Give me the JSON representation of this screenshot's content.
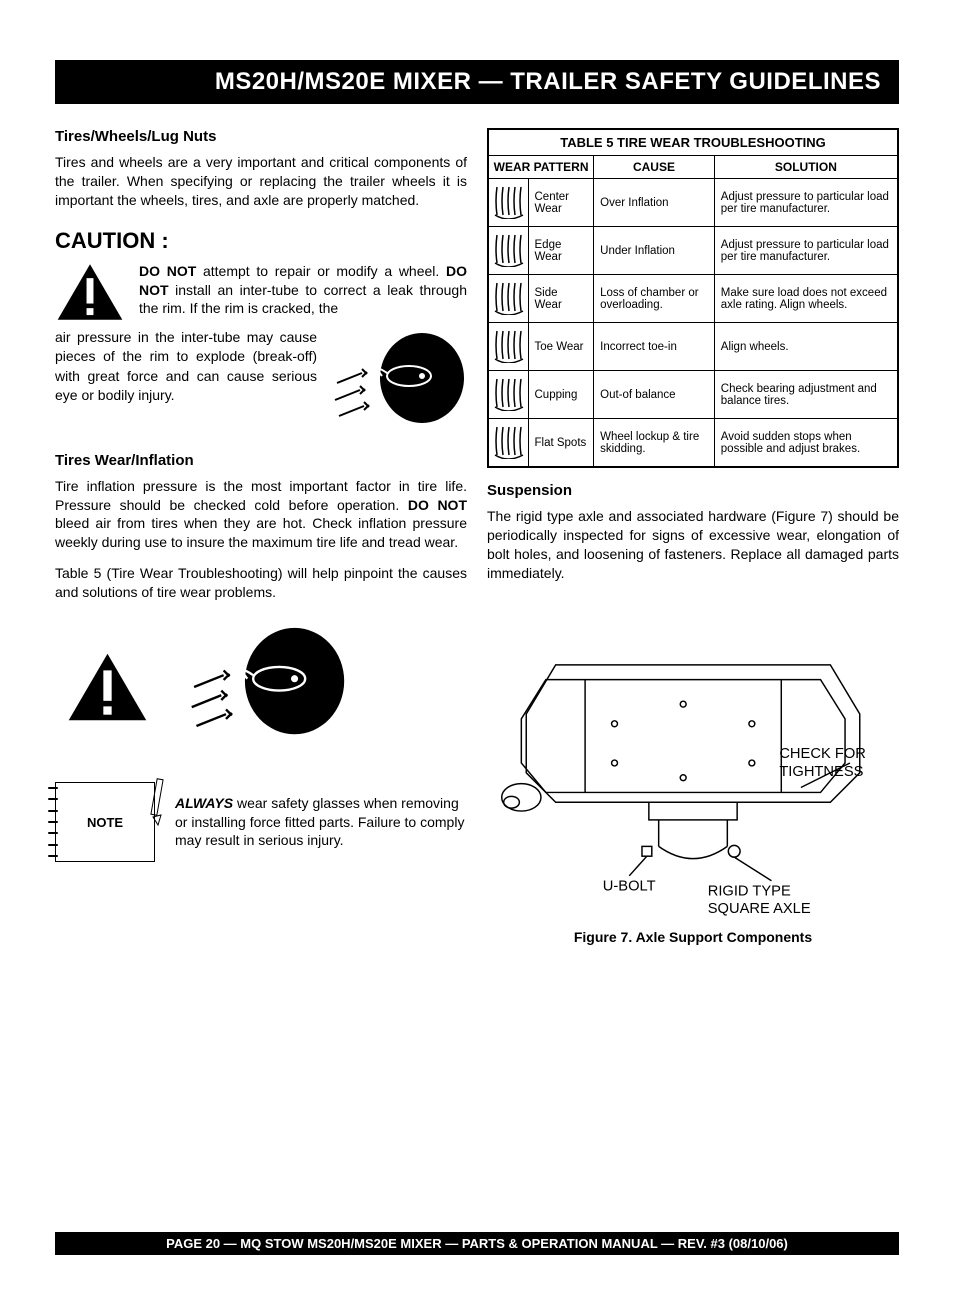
{
  "header": "MS20H/MS20E MIXER — TRAILER SAFETY GUIDELINES",
  "left": {
    "h1": "Tires/Wheels/Lug Nuts",
    "p1": "Tires and wheels are a very important and critical components of the trailer.  When specifying or replacing the trailer wheels it is important the wheels, tires, and axle are properly matched.",
    "caution": "CAUTION :",
    "donot1": "DO NOT",
    "c_p1a": " attempt to repair or modify a wheel. ",
    "donot2": "DO NOT",
    "c_p1b": " install an inter-tube to correct a leak through the rim. If the rim is cracked, the",
    "c_p2": "air pressure in the inter-tube may cause pieces of the rim to explode (break-off) with great force and can cause serious eye or bodily injury.",
    "h2": "Tires Wear/Inflation",
    "p2a": "Tire inflation pressure is the most important factor in tire life.  Pressure should be checked cold before operation.  ",
    "donot3": "DO NOT",
    "p2b": " bleed air from tires when they are hot.  Check inflation pressure weekly during use to insure the maximum tire life and tread wear.",
    "p3": "Table 5 (Tire Wear Troubleshooting) will help pinpoint the causes and solutions of tire wear problems.",
    "note_label": "NOTE",
    "always": "ALWAYS",
    "note_text": " wear safety glasses when removing or installing force fitted parts. Failure to comply may result in serious injury."
  },
  "table": {
    "title": "TABLE 5 TIRE WEAR TROUBLESHOOTING",
    "col1": "WEAR PATTERN",
    "col2": "CAUSE",
    "col3": "SOLUTION",
    "rows": [
      {
        "pattern": "Center Wear",
        "cause": "Over Inflation",
        "solution": "Adjust pressure to particular load per tire manufacturer."
      },
      {
        "pattern": "Edge Wear",
        "cause": "Under Inflation",
        "solution": "Adjust pressure to particular load per tire manufacturer."
      },
      {
        "pattern": "Side Wear",
        "cause": "Loss of chamber or overloading.",
        "solution": "Make sure load does not exceed axle rating. Align wheels."
      },
      {
        "pattern": "Toe Wear",
        "cause": "Incorrect toe-in",
        "solution": "Align wheels."
      },
      {
        "pattern": "Cupping",
        "cause": "Out-of balance",
        "solution": "Check bearing adjustment and balance tires."
      },
      {
        "pattern": "Flat Spots",
        "cause": "Wheel lockup & tire skidding.",
        "solution": "Avoid sudden stops when possible and adjust brakes."
      }
    ]
  },
  "right": {
    "h1": "Suspension",
    "p1": "The rigid type axle and associated hardware (Figure 7) should be periodically inspected for signs of excessive wear, elongation of bolt holes, and loosening of fasteners.  Replace all damaged parts  immediately.",
    "fig_labels": {
      "check": "CHECK FOR TIGHTNESS",
      "ubolt": "U-BOLT",
      "axle": "RIGID TYPE SQUARE AXLE"
    },
    "fig_caption": "Figure 7.  Axle Support  Components"
  },
  "footer": "PAGE 20 — MQ  STOW MS20H/MS20E MIXER — PARTS & OPERATION MANUAL — REV. #3 (08/10/06)"
}
